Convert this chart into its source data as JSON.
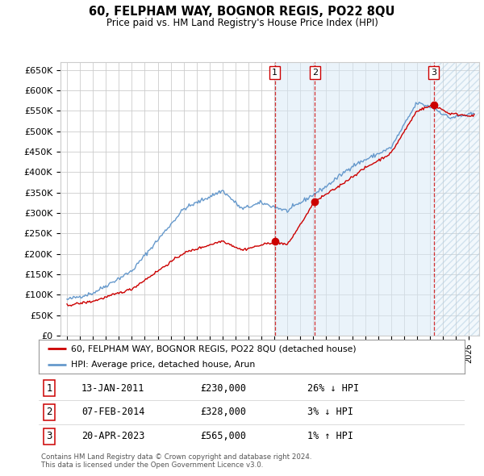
{
  "title": "60, FELPHAM WAY, BOGNOR REGIS, PO22 8QU",
  "subtitle": "Price paid vs. HM Land Registry's House Price Index (HPI)",
  "ylim": [
    0,
    670000
  ],
  "yticks": [
    0,
    50000,
    100000,
    150000,
    200000,
    250000,
    300000,
    350000,
    400000,
    450000,
    500000,
    550000,
    600000,
    650000
  ],
  "xlim_start": 1994.5,
  "xlim_end": 2026.8,
  "legend_line1": "60, FELPHAM WAY, BOGNOR REGIS, PO22 8QU (detached house)",
  "legend_line2": "HPI: Average price, detached house, Arun",
  "transactions": [
    {
      "num": 1,
      "date": "13-JAN-2011",
      "price": "£230,000",
      "pct": "26%",
      "dir": "↓",
      "year": 2011.04
    },
    {
      "num": 2,
      "date": "07-FEB-2014",
      "price": "£328,000",
      "pct": "3%",
      "dir": "↓",
      "year": 2014.12
    },
    {
      "num": 3,
      "date": "20-APR-2023",
      "price": "£565,000",
      "pct": "1%",
      "dir": "↑",
      "year": 2023.3
    }
  ],
  "transaction_prices": [
    230000,
    328000,
    565000
  ],
  "footer": "Contains HM Land Registry data © Crown copyright and database right 2024.\nThis data is licensed under the Open Government Licence v3.0.",
  "red_color": "#cc0000",
  "blue_color": "#6699cc",
  "background_color": "#ffffff",
  "grid_color": "#cccccc"
}
